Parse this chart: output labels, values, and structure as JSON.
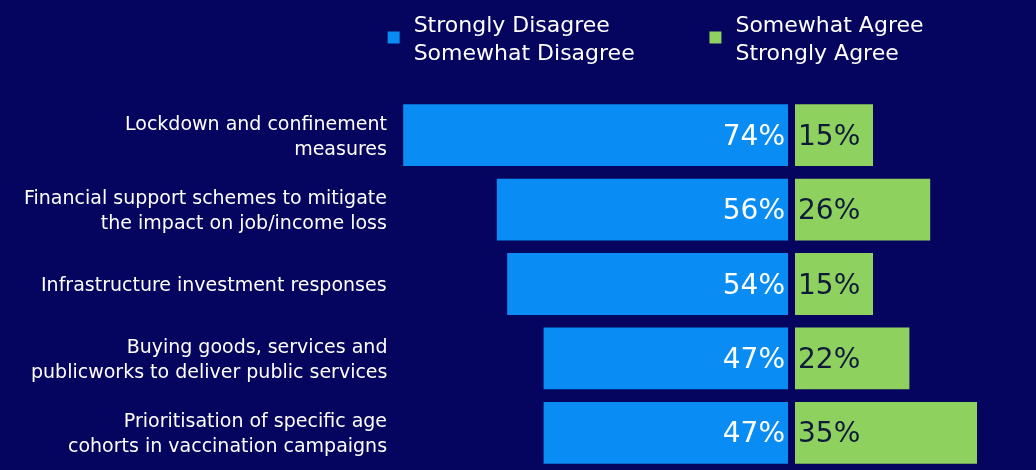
{
  "chart_data": [
    {
      "type": "bar",
      "orientation": "horizontal",
      "categories": [
        "Lockdown and confinement\nmeasures",
        "Financial support schemes to mitigate\nthe impact on job/income loss",
        "Infrastructure investment responses",
        "Buying goods, services and\npublicworks to deliver public services",
        "Prioritisation of specific age\ncohorts in vaccination campaigns"
      ],
      "series": [
        {
          "name": "Strongly Disagree\nSomewhat Disagree",
          "color": "#0a8cf5",
          "values": [
            74,
            56,
            54,
            47,
            47
          ],
          "value_labels": [
            "74%",
            "56%",
            "54%",
            "47%",
            "47%"
          ]
        }
      ],
      "legend": "top",
      "tick_labels": "y"
    },
    {
      "type": "bar",
      "orientation": "horizontal",
      "categories": [
        null,
        null,
        null,
        null,
        null
      ],
      "series": [
        {
          "name": "Somewhat Agree\nStrongly Agree",
          "color": "#8fd15e",
          "values": [
            15,
            26,
            15,
            22,
            35
          ],
          "value_labels": [
            "15%",
            "26%",
            "15%",
            "22%",
            "35%"
          ]
        }
      ],
      "legend": "top",
      "tick_labels": false
    }
  ]
}
